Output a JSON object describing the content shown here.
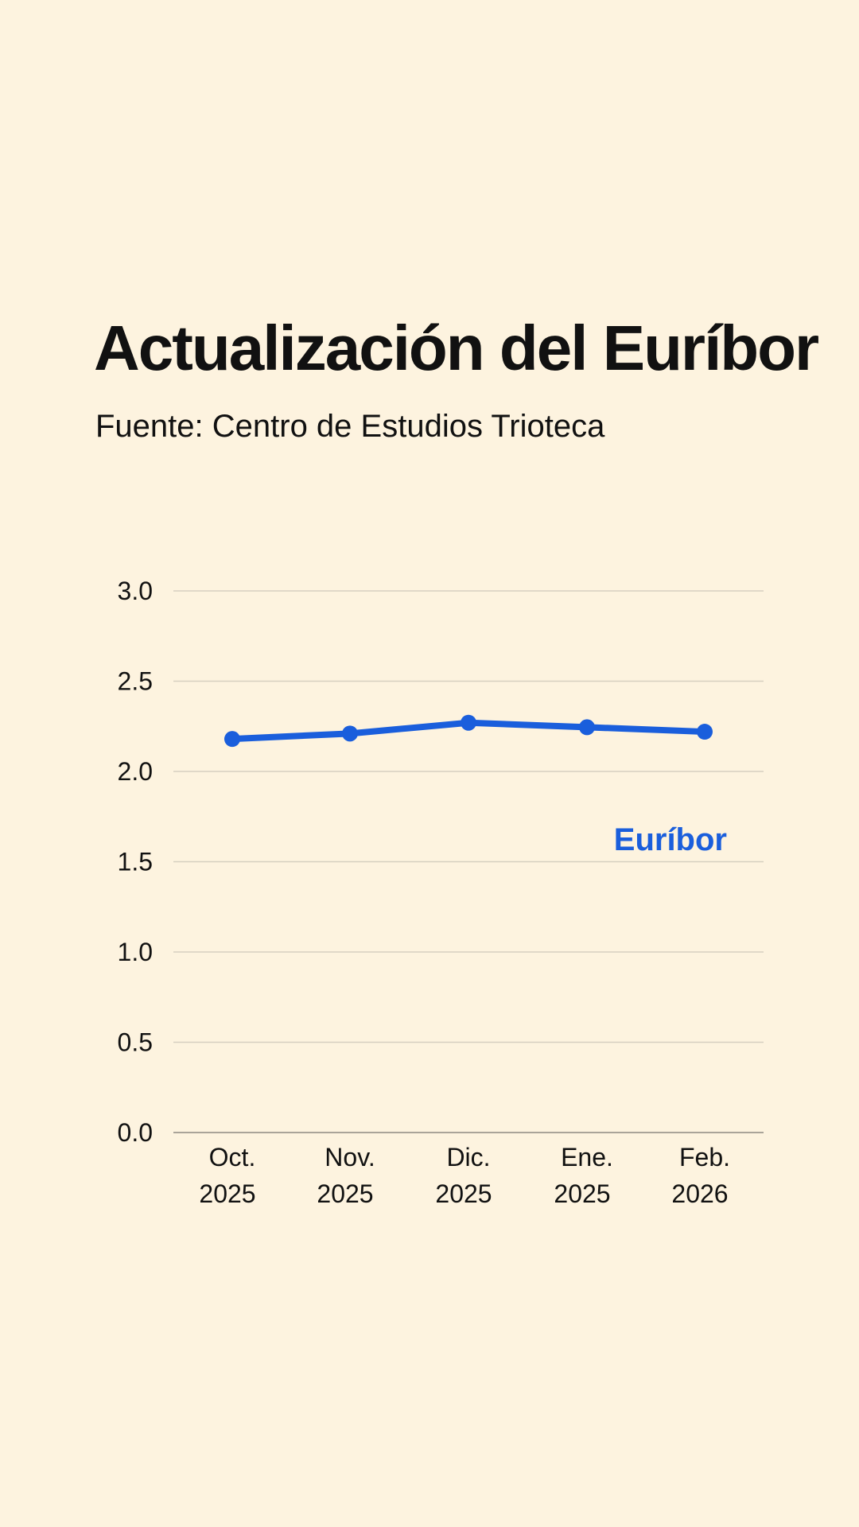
{
  "chart_data": {
    "type": "line",
    "title": "Actualización del Euríbor",
    "subtitle": "Fuente: Centro de Estudios Trioteca",
    "categories": [
      [
        "Oct.",
        "2025"
      ],
      [
        "Nov.",
        "2025"
      ],
      [
        "Dic.",
        "2025"
      ],
      [
        "Ene.",
        "2025"
      ],
      [
        "Feb.",
        "2026"
      ]
    ],
    "series": [
      {
        "name": "Euríbor",
        "values": [
          2.18,
          2.21,
          2.27,
          2.245,
          2.22
        ],
        "color": "#1A5EDC"
      }
    ],
    "y_ticks": [
      "0.0",
      "0.5",
      "1.0",
      "1.5",
      "2.0",
      "2.5",
      "3.0"
    ],
    "ylim": [
      0,
      3
    ],
    "grid": true,
    "legend": "inline-label-right",
    "colors": {
      "background": "#FDF3DF",
      "grid": "#D6CFC0",
      "axis": "#8E8A82",
      "text": "#111111"
    }
  }
}
